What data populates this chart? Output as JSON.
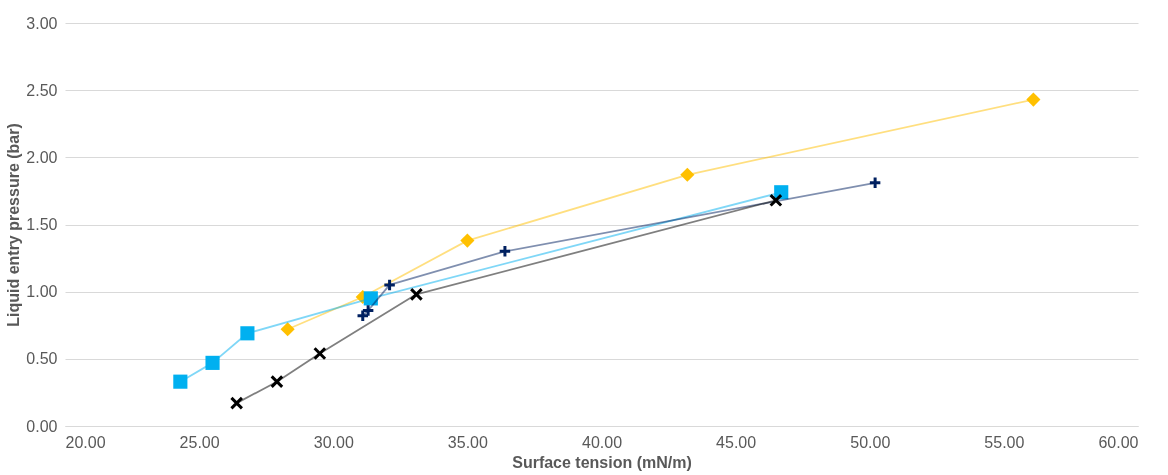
{
  "chart_data": {
    "type": "line",
    "xlabel": "Surface tension (mN/m)",
    "ylabel": "Liquid entry pressure (bar)",
    "xlim": [
      20,
      60
    ],
    "xticks": [
      {
        "value": 20,
        "label": "20.00"
      },
      {
        "value": 25,
        "label": "25.00"
      },
      {
        "value": 30,
        "label": "30.00"
      },
      {
        "value": 35,
        "label": "35.00"
      },
      {
        "value": 40,
        "label": "40.00"
      },
      {
        "value": 45,
        "label": "45.00"
      },
      {
        "value": 50,
        "label": "50.00"
      },
      {
        "value": 55,
        "label": "55.00"
      },
      {
        "value": 60,
        "label": "60.00"
      }
    ],
    "ylim": [
      0,
      3
    ],
    "yticks": [
      {
        "value": 0,
        "label": "0.00"
      },
      {
        "value": 0.5,
        "label": "0.50"
      },
      {
        "value": 1,
        "label": "1.00"
      },
      {
        "value": 1.5,
        "label": "1.50"
      },
      {
        "value": 2,
        "label": "2.00"
      },
      {
        "value": 2.5,
        "label": "2.50"
      },
      {
        "value": 3,
        "label": "3.00"
      }
    ],
    "grid": "y",
    "series": [
      {
        "color": "#ffc000",
        "marker": "diamond",
        "x": [
          28.3,
          31.1,
          35.0,
          43.2,
          56.1
        ],
        "values": [
          0.72,
          0.96,
          1.38,
          1.87,
          2.43
        ]
      },
      {
        "color": "#00b0f0",
        "marker": "square",
        "x": [
          24.3,
          25.5,
          26.8,
          31.4,
          46.7
        ],
        "values": [
          0.33,
          0.47,
          0.69,
          0.95,
          1.74
        ]
      },
      {
        "color": "#002060",
        "marker": "cross",
        "x": [
          31.1,
          31.3,
          32.1,
          36.4,
          50.2
        ],
        "values": [
          0.82,
          0.86,
          1.05,
          1.3,
          1.81
        ]
      },
      {
        "color": "#000000",
        "marker": "x",
        "x": [
          26.4,
          27.9,
          29.5,
          33.1,
          46.5
        ],
        "values": [
          0.17,
          0.33,
          0.54,
          0.98,
          1.68
        ]
      }
    ]
  }
}
